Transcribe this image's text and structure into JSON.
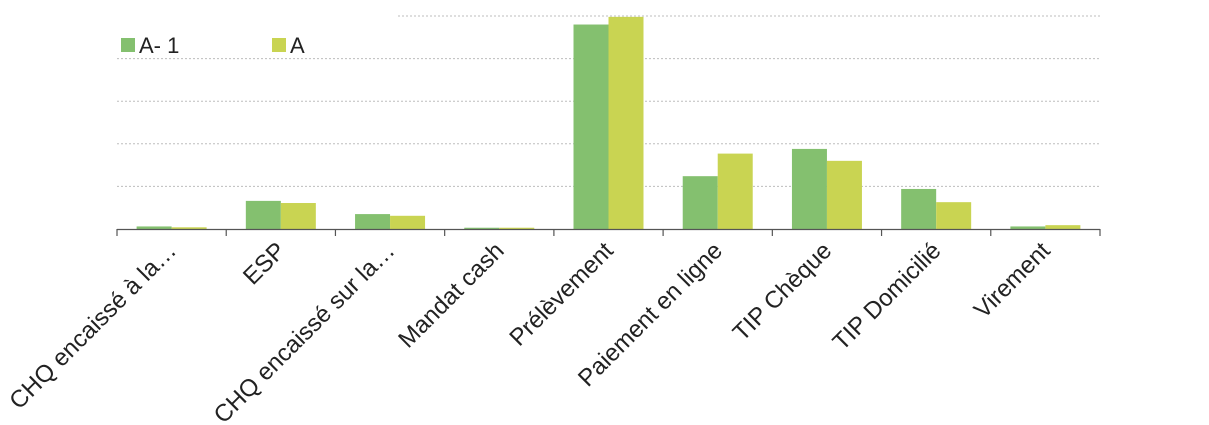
{
  "chart_data": {
    "type": "bar",
    "title": "",
    "xlabel": "",
    "ylabel": "",
    "ylim": [
      0,
      5
    ],
    "grid": true,
    "legend_position": "top-left",
    "categories": [
      "CHQ encaissé à la…",
      "ESP",
      "CHQ encaissé sur la…",
      "Mandat cash",
      "Prélèvement",
      "Paiement en ligne",
      "TIP Chèque",
      "TIP Domicilié",
      "Virement"
    ],
    "series": [
      {
        "name": "A- 1",
        "color": "#84c06f",
        "values": [
          0.06,
          0.66,
          0.35,
          0.03,
          4.8,
          1.24,
          1.88,
          0.94,
          0.06
        ]
      },
      {
        "name": "A",
        "color": "#c9d452",
        "values": [
          0.04,
          0.61,
          0.31,
          0.03,
          4.98,
          1.77,
          1.6,
          0.63,
          0.09
        ]
      }
    ]
  }
}
